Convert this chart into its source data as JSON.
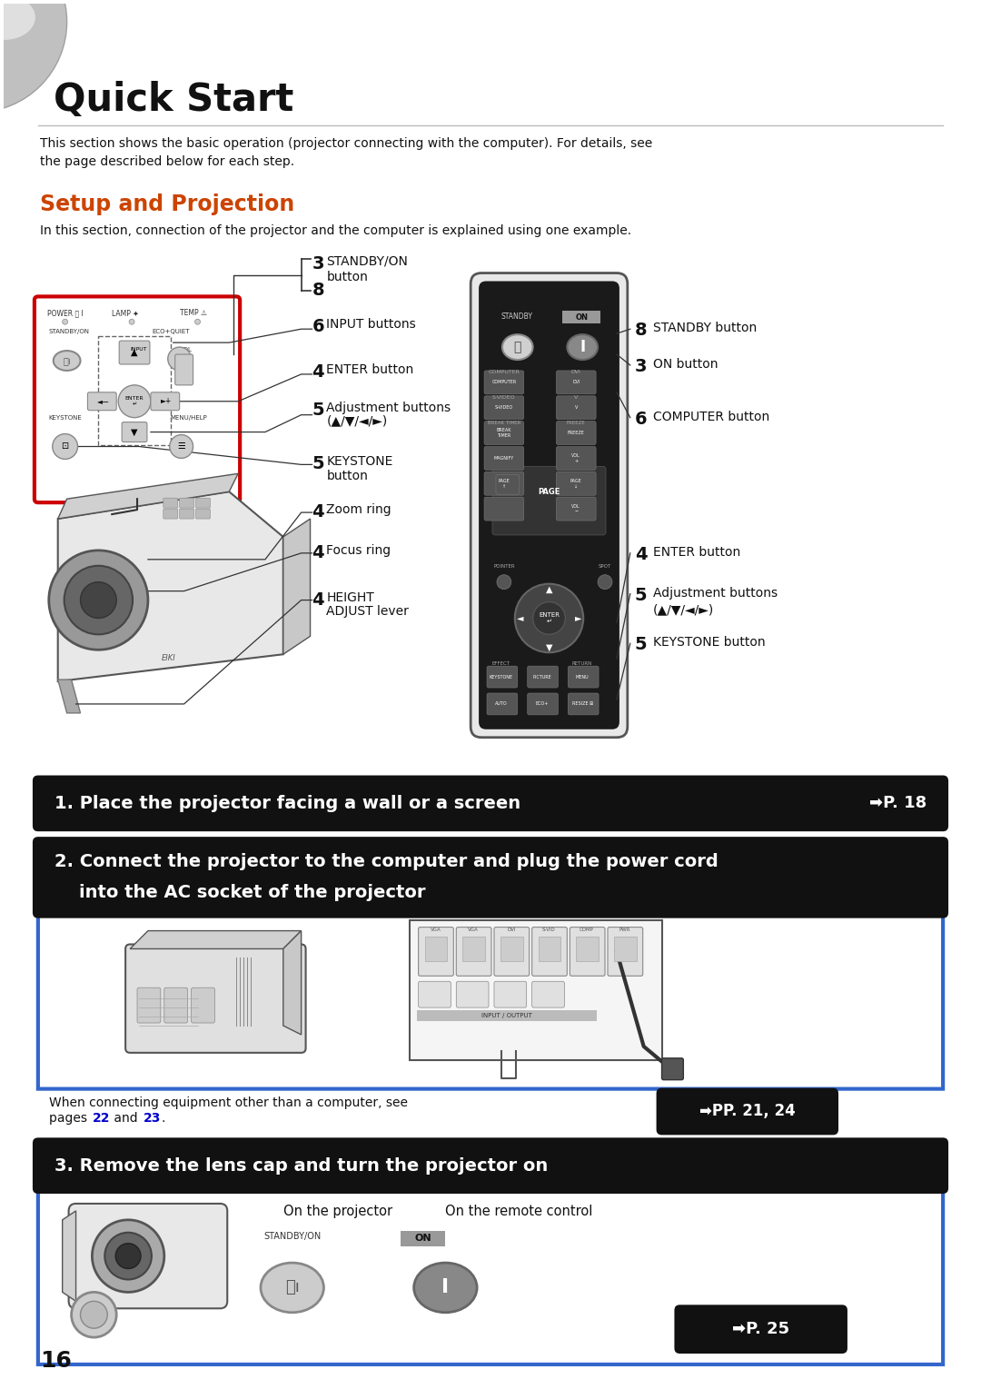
{
  "bg_color": "#ffffff",
  "page_width": 10.8,
  "page_height": 15.29,
  "title": "Quick Start",
  "title_fontsize": 30,
  "section_title": "Setup and Projection",
  "section_title_color": "#cc4400",
  "section_title_fontsize": 17,
  "intro_text": "This section shows the basic operation (projector connecting with the computer). For details, see\nthe page described below for each step.",
  "section_intro": "In this section, connection of the projector and the computer is explained using one example.",
  "step1_text": "1. Place the projector facing a wall or a screen",
  "step1_ref": "➡P. 18",
  "step2_line1": "2. Connect the projector to the computer and plug the power cord",
  "step2_line2": "    into the AC socket of the projector",
  "step3_text": "3. Remove the lens cap and turn the projector on",
  "step3_ref": "➡P. 25",
  "pp_ref": "➡PP. 21, 24",
  "black_bar_color": "#111111",
  "white_text_color": "#ffffff",
  "blue_border_color": "#3366cc",
  "blue_link_color": "#0000cc",
  "page_number": "16",
  "connecting_line1": "When connecting equipment other than a computer, see",
  "connecting_pre": "pages ",
  "connecting_link1": "22",
  "connecting_mid": " and ",
  "connecting_link2": "23",
  "connecting_end": ".",
  "on_projector_text": "On the projector",
  "on_remote_text": "On the remote control",
  "standby_label": "STANDBY/ON",
  "on_label": "ON",
  "left_labels": [
    {
      "num": "3",
      "text": "",
      "has_bracket": true
    },
    {
      "num": "8",
      "text": "STANDBY/ON\nbutton",
      "has_bracket": true
    },
    {
      "num": "6",
      "text": "INPUT buttons",
      "has_bracket": false
    },
    {
      "num": "4",
      "text": "ENTER button",
      "has_bracket": false
    },
    {
      "num": "5",
      "text": "Adjustment buttons\n(▲/▼/◄/►)",
      "has_bracket": false
    },
    {
      "num": "5",
      "text": "KEYSTONE\nbutton",
      "has_bracket": false
    },
    {
      "num": "4",
      "text": "Zoom ring",
      "has_bracket": false
    },
    {
      "num": "4",
      "text": "Focus ring",
      "has_bracket": false
    },
    {
      "num": "4",
      "text": "HEIGHT\nADJUST lever",
      "has_bracket": false
    }
  ],
  "right_labels": [
    {
      "num": "8",
      "text": "STANDBY button"
    },
    {
      "num": "3",
      "text": "ON button"
    },
    {
      "num": "6",
      "text": "COMPUTER button"
    },
    {
      "num": "4",
      "text": "ENTER button"
    },
    {
      "num": "5",
      "text": "Adjustment buttons\n(▲/▼/◄/►)"
    },
    {
      "num": "5",
      "text": "KEYSTONE button"
    }
  ]
}
